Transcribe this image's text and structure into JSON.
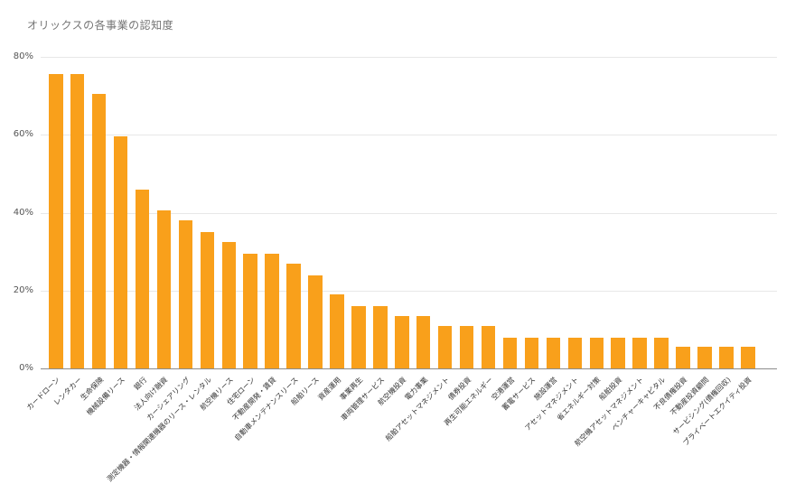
{
  "chart_data": {
    "type": "bar",
    "title": "オリックスの各事業の認知度",
    "categories": [
      "カードローン",
      "レンタカー",
      "生命保険",
      "機械設備リース",
      "銀行",
      "法人向け融資",
      "カーシェアリング",
      "測定機器・情報関連機器のリース・レンタル",
      "航空機リース",
      "住宅ローン",
      "不動産開発・賃貸",
      "自動車メンテナンスリース",
      "船舶リース",
      "資産運用",
      "事業再生",
      "車両管理サービス",
      "航空機投資",
      "電力事業",
      "船舶アセットマネジメント",
      "債券投資",
      "再生可能エネルギー",
      "空港運営",
      "蓄電サービス",
      "施設運営",
      "アセットマネジメント",
      "省エネルギー対策",
      "船舶投資",
      "航空機アセットマネジメント",
      "ベンチャーキャピタル",
      "不良債権投資",
      "不動産投資顧問",
      "サービシング(債権回収)",
      "プライベートエクイティ投資"
    ],
    "values": [
      75.5,
      75.5,
      70.5,
      59.5,
      46,
      40.5,
      38,
      35,
      32.5,
      29.5,
      29.5,
      27,
      24,
      19,
      16,
      16,
      13.5,
      13.5,
      11,
      11,
      11,
      8,
      8,
      8,
      8,
      8,
      8,
      8,
      8,
      5.5,
      5.5,
      5.5,
      5.5
    ],
    "xlabel": "",
    "ylabel": "",
    "ylim": [
      0,
      80
    ],
    "ytick_values": [
      0,
      20,
      40,
      60,
      80
    ],
    "ytick_labels": [
      "0%",
      "20%",
      "40%",
      "60%",
      "80%"
    ],
    "grid": "horizontal",
    "legend": "none",
    "bar_color": "#F9A01B",
    "grid_color": "#E8E8E8",
    "baseline_color": "#8C8C8C",
    "title_color": "#757575",
    "ytick_color": "#555555",
    "xtick_color": "#333333",
    "background_color": "#FFFFFF"
  }
}
